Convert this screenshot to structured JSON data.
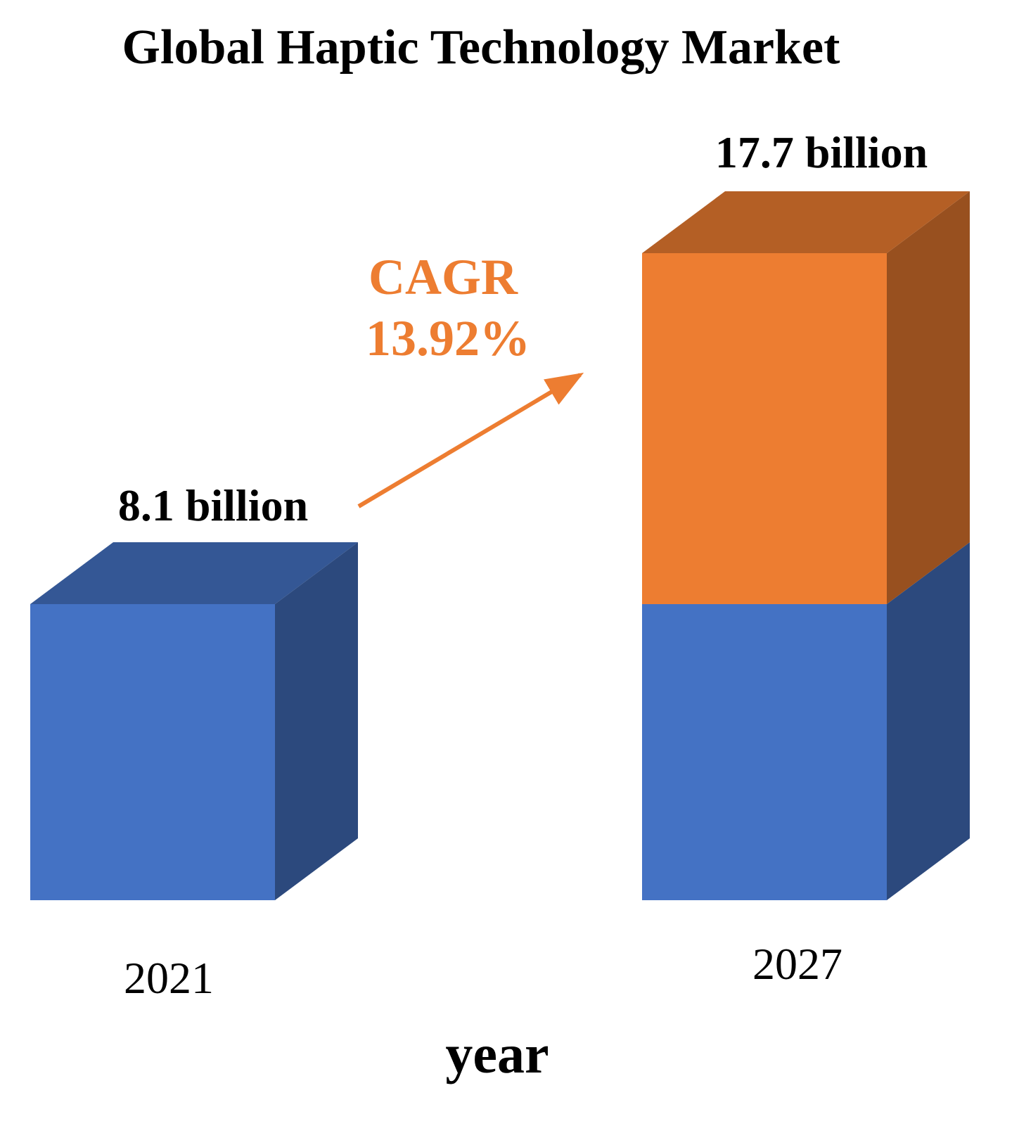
{
  "chart_data": {
    "type": "bar",
    "title": "Global Haptic Technology Market",
    "xlabel": "year",
    "ylabel": "",
    "unit": "billion",
    "categories": [
      "2021",
      "2027"
    ],
    "values": [
      8.1,
      17.7
    ],
    "value_labels": [
      "8.1 billion",
      "17.7 billion"
    ],
    "growth_segment_from_value": 8.1,
    "annotation": {
      "line1": "CAGR",
      "line2": "13.92%"
    },
    "colors": {
      "base": "#4472C4",
      "growth": "#ED7D31"
    }
  }
}
